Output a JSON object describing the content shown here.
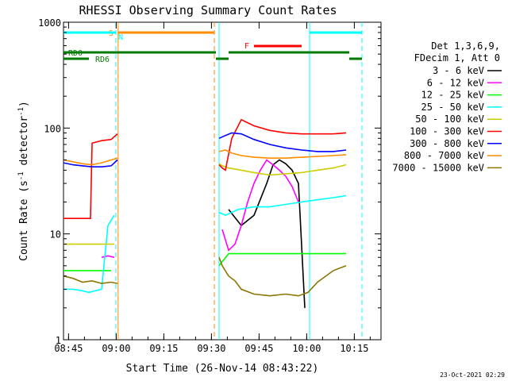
{
  "chart_data": {
    "type": "line",
    "title": "RHESSI Observing Summary Count Rates",
    "xlabel": "Start Time (26-Nov-14 08:43:22)",
    "ylabel_main": "Count Rate (s",
    "ylabel_sup1": "-1",
    "ylabel_mid": " detector",
    "ylabel_sup2": "-1",
    "ylabel_end": ")",
    "footer": "23-Oct-2021 02:29",
    "y_scale": "log",
    "xlim_minutes": [
      0,
      100
    ],
    "ylim": [
      1,
      1000
    ],
    "x_ticks": [
      {
        "label": "08:45",
        "t": 1.6
      },
      {
        "label": "09:00",
        "t": 16.6
      },
      {
        "label": "09:15",
        "t": 31.6
      },
      {
        "label": "09:30",
        "t": 46.6
      },
      {
        "label": "09:45",
        "t": 61.6
      },
      {
        "label": "10:00",
        "t": 76.6
      },
      {
        "label": "10:15",
        "t": 91.6
      }
    ],
    "y_ticks": [
      {
        "label": "1",
        "v": 1
      },
      {
        "label": "10",
        "v": 10
      },
      {
        "label": "100",
        "v": 100
      },
      {
        "label": "1000",
        "v": 1000
      }
    ],
    "legend": {
      "header": [
        "Det 1,3,6,9,",
        "FDecim 1, Att 0"
      ],
      "position": "right"
    },
    "series": [
      {
        "name": "3 - 6 keV",
        "color": "#000000",
        "segments": [
          {
            "t": [
              52,
              56,
              60,
              64,
              66,
              68,
              70,
              72,
              74,
              76
            ],
            "y": [
              17,
              12,
              15,
              30,
              45,
              50,
              46,
              40,
              30,
              2
            ]
          }
        ]
      },
      {
        "name": "6 - 12 keV",
        "color": "#ff00ff",
        "segments": [
          {
            "t": [
              12,
              14,
              16
            ],
            "y": [
              6,
              6.2,
              6
            ]
          },
          {
            "t": [
              50,
              52,
              54,
              56,
              58,
              60,
              62,
              64,
              66,
              68,
              70,
              72,
              74
            ],
            "y": [
              11,
              7,
              8,
              12,
              20,
              30,
              40,
              50,
              45,
              40,
              35,
              28,
              20
            ]
          }
        ]
      },
      {
        "name": "12 - 25 keV",
        "color": "#00ff00",
        "segments": [
          {
            "t": [
              0,
              4,
              8,
              12,
              15
            ],
            "y": [
              4.5,
              4.5,
              4.5,
              4.5,
              4.5
            ]
          },
          {
            "t": [
              49,
              52,
              56,
              60,
              65,
              70,
              75,
              80,
              85,
              89
            ],
            "y": [
              5,
              6.5,
              6.5,
              6.5,
              6.5,
              6.5,
              6.5,
              6.5,
              6.5,
              6.5
            ]
          }
        ]
      },
      {
        "name": "25 - 50 keV",
        "color": "#00ffff",
        "segments": [
          {
            "t": [
              0,
              3,
              6,
              8,
              10,
              12,
              14,
              16
            ],
            "y": [
              3,
              3,
              2.9,
              2.8,
              2.9,
              3,
              12,
              15
            ]
          },
          {
            "t": [
              49,
              51,
              55,
              60,
              65,
              70,
              75,
              80,
              85,
              89
            ],
            "y": [
              16,
              15,
              17,
              18,
              18,
              19,
              20,
              21,
              22,
              23
            ]
          }
        ]
      },
      {
        "name": "50 - 100 keV",
        "color": "#cccc00",
        "segments": [
          {
            "t": [
              0,
              4,
              8,
              10,
              14,
              16
            ],
            "y": [
              8,
              8,
              8,
              8,
              8,
              8
            ]
          },
          {
            "t": [
              49,
              50,
              52,
              56,
              60,
              65,
              70,
              75,
              80,
              85,
              89
            ],
            "y": [
              46,
              44,
              42,
              40,
              38,
              36,
              37,
              38,
              40,
              42,
              45
            ]
          }
        ]
      },
      {
        "name": "100 - 300 keV",
        "color": "#ff0000",
        "segments": [
          {
            "t": [
              0,
              3,
              6,
              8.5,
              9,
              12,
              15,
              17
            ],
            "y": [
              14,
              14,
              14,
              14,
              72,
              76,
              78,
              88
            ]
          },
          {
            "t": [
              49,
              50,
              51,
              53,
              56,
              60,
              65,
              70,
              75,
              80,
              85,
              89
            ],
            "y": [
              45,
              42,
              40,
              80,
              120,
              105,
              95,
              90,
              88,
              88,
              88,
              90
            ]
          }
        ]
      },
      {
        "name": "300 - 800 keV",
        "color": "#0000ff",
        "segments": [
          {
            "t": [
              0,
              3,
              6,
              9,
              12,
              15,
              17
            ],
            "y": [
              47,
              45,
              44,
              43,
              43,
              44,
              50
            ]
          },
          {
            "t": [
              49,
              51,
              53,
              56,
              60,
              65,
              70,
              75,
              80,
              85,
              89
            ],
            "y": [
              80,
              85,
              90,
              88,
              78,
              70,
              65,
              62,
              60,
              60,
              62
            ]
          }
        ]
      },
      {
        "name": "800 - 7000 keV",
        "color": "#ff8c00",
        "segments": [
          {
            "t": [
              0,
              3,
              6,
              9,
              12,
              15,
              17
            ],
            "y": [
              50,
              48,
              46,
              45,
              47,
              50,
              52
            ]
          },
          {
            "t": [
              49,
              51,
              53,
              56,
              60,
              65,
              70,
              75,
              80,
              85,
              89
            ],
            "y": [
              60,
              62,
              58,
              55,
              53,
              52,
              52,
              53,
              54,
              55,
              56
            ]
          }
        ]
      },
      {
        "name": "7000 - 15000 keV",
        "color": "#8b7500",
        "segments": [
          {
            "t": [
              0,
              3,
              6,
              9,
              12,
              15,
              17
            ],
            "y": [
              4,
              3.8,
              3.5,
              3.6,
              3.4,
              3.5,
              3.4
            ]
          },
          {
            "t": [
              49,
              50,
              52,
              54,
              56,
              60,
              65,
              70,
              74,
              77,
              80,
              85,
              89
            ],
            "y": [
              6,
              5,
              4,
              3.6,
              3,
              2.7,
              2.6,
              2.7,
              2.6,
              2.8,
              3.5,
              4.5,
              5
            ]
          }
        ]
      }
    ],
    "bars": [
      {
        "label": "S",
        "color": "#ff8c00",
        "row": "top",
        "t_start": 17.2,
        "t_end": 47.5
      },
      {
        "label": "N",
        "color": "#00ffff",
        "row": "top",
        "t_start": 0,
        "t_end": 16.5
      },
      {
        "label": "",
        "color": "#00ffff",
        "row": "top",
        "t_start": 77.5,
        "t_end": 94
      },
      {
        "label": "F",
        "color": "#ff0000",
        "row": "flare",
        "t_start": 60,
        "t_end": 75
      },
      {
        "label": "RD0",
        "color": "#007a00",
        "row": "rd0",
        "t_start": 0,
        "t_end": 48
      },
      {
        "label": "",
        "color": "#007a00",
        "row": "rd0",
        "t_start": 52,
        "t_end": 90
      },
      {
        "label": "RD6",
        "color": "#007a00",
        "row": "rd6",
        "t_start": 0,
        "t_end": 8
      },
      {
        "label": "",
        "color": "#007a00",
        "row": "rd6",
        "t_start": 48,
        "t_end": 52
      },
      {
        "label": "",
        "color": "#007a00",
        "row": "rd6",
        "t_start": 90,
        "t_end": 94
      }
    ],
    "vlines": [
      {
        "t": 17.2,
        "color": "#ff8c00",
        "style": "solid"
      },
      {
        "t": 16.5,
        "color": "#00ffff",
        "style": "dashed"
      },
      {
        "t": 47.5,
        "color": "#ff8c00",
        "style": "dashed"
      },
      {
        "t": 49.0,
        "color": "#00ffff",
        "style": "solid"
      },
      {
        "t": 77.5,
        "color": "#00ffff",
        "style": "solid"
      },
      {
        "t": 94.0,
        "color": "#00ffff",
        "style": "dashed"
      }
    ]
  }
}
